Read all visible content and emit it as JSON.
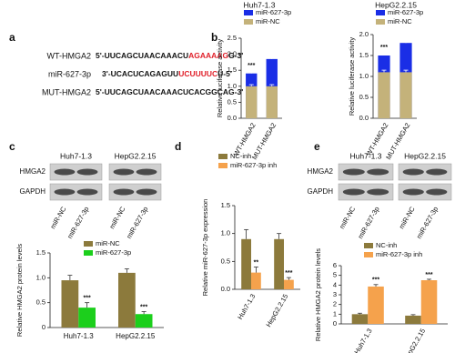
{
  "panels": [
    "a",
    "b",
    "c",
    "d",
    "e"
  ],
  "sequences": [
    {
      "name": "WT-HMGA2",
      "parts": [
        "5'-UUCAGCUAACAAACU",
        "AGAAAAG",
        "G-3'"
      ]
    },
    {
      "name": "miR-627-3p",
      "parts": [
        "3'-UCACUCAGAGUU",
        "UCUUUUC",
        "U-5'"
      ]
    },
    {
      "name": "MUT-HMGA2",
      "parts": [
        "5'-UUCAGCUAACAAACUCACGGCAG-3'"
      ]
    }
  ],
  "blots": [
    {
      "groups": [
        "Huh7-1.3",
        "HepG2.2.15"
      ],
      "rows": [
        "HMGA2",
        "GAPDH"
      ],
      "lanes": [
        "miR-NC",
        "miR-627-3p",
        "miR-NC",
        "miR-627-3p"
      ]
    },
    {
      "groups": [
        "Huh7-1.3",
        "HepG2.2.15"
      ],
      "rows": [
        "HMGA2",
        "GAPDH"
      ],
      "lanes": [
        "miR-NC",
        "miR-627-3p",
        "miR-NC",
        "miR-627-3p"
      ]
    }
  ],
  "chart_data": [
    {
      "type": "bar",
      "overlap": true,
      "title": "Huh7-1.3",
      "y_label": "Relative luciferase activity",
      "categories": [
        "WT-HMGA2",
        "MUT-HMGA2"
      ],
      "series": [
        {
          "name": "miR-627-3p",
          "color": "#1a2ee6",
          "values": [
            1.4,
            1.85
          ],
          "errors": [
            0.1,
            0.08
          ],
          "annotations": [
            "***",
            null
          ]
        },
        {
          "name": "miR-NC",
          "color": "#c4b27a",
          "values": [
            1.0,
            1.0
          ],
          "errors": [
            0.05,
            0.05
          ]
        }
      ],
      "ylim": [
        0,
        2.5
      ],
      "yticks": [
        {
          "value": 0,
          "label": "0.0"
        },
        0.5,
        {
          "value": 1,
          "label": "1.0"
        },
        1.5,
        {
          "value": 2,
          "label": "2.0"
        },
        2.5
      ]
    },
    {
      "type": "bar",
      "overlap": true,
      "title": "HepG2.2.15",
      "y_label": "Relative luciferase activity",
      "categories": [
        "WT-HMGA2",
        "MUT-HMGA2"
      ],
      "series": [
        {
          "name": "miR-627-3p",
          "color": "#1a2ee6",
          "values": [
            1.5,
            1.8
          ],
          "errors": [
            0.08,
            0.06
          ],
          "annotations": [
            "***",
            null
          ]
        },
        {
          "name": "miR-NC",
          "color": "#c4b27a",
          "values": [
            1.1,
            1.1
          ],
          "errors": [
            0.05,
            0.05
          ]
        }
      ],
      "ylim": [
        0,
        2
      ],
      "yticks": [
        {
          "value": 0,
          "label": "0.0"
        },
        0.5,
        {
          "value": 1,
          "label": "1.0"
        },
        1.5,
        {
          "value": 2,
          "label": "2.0"
        }
      ]
    },
    {
      "type": "bar",
      "y_label": "Relative HMGA2 protein levels",
      "categories": [
        "Huh7-1.3",
        "HepG2.2.15"
      ],
      "series": [
        {
          "name": "miR-NC",
          "color": "#8c7a3c",
          "values": [
            0.95,
            1.1
          ],
          "errors": [
            0.1,
            0.08
          ]
        },
        {
          "name": "miR-627-3p",
          "color": "#1ccf1c",
          "values": [
            0.4,
            0.27
          ],
          "errors": [
            0.1,
            0.05
          ],
          "annotations": [
            "***",
            "***"
          ]
        }
      ],
      "ylim": [
        0,
        1.5
      ],
      "yticks": [
        0,
        0.5,
        {
          "value": 1,
          "label": "1.0"
        },
        1.5
      ]
    },
    {
      "type": "bar",
      "y_label": "Relative miR-627-3p expression",
      "categories": [
        "Huh7-1.3",
        "HepG2.2.15"
      ],
      "series": [
        {
          "name": "NC-inh",
          "color": "#8c7a3c",
          "values": [
            0.9,
            0.9
          ],
          "errors": [
            0.17,
            0.1
          ]
        },
        {
          "name": "miR-627-3p inh",
          "color": "#f5a24c",
          "values": [
            0.3,
            0.17
          ],
          "errors": [
            0.1,
            0.04
          ],
          "annotations": [
            "**",
            "***"
          ]
        }
      ],
      "ylim": [
        0,
        1.5
      ],
      "yticks": [
        {
          "value": 0,
          "label": "0.0"
        },
        0.5,
        {
          "value": 1,
          "label": "1.0"
        },
        1.5
      ]
    },
    {
      "type": "bar",
      "y_label": "Relative HMGA2 protein levels",
      "categories": [
        "Huh7-1.3",
        "HepG2.2.15"
      ],
      "series": [
        {
          "name": "NC-inh",
          "color": "#8c7a3c",
          "values": [
            1.0,
            0.85
          ],
          "errors": [
            0.1,
            0.1
          ]
        },
        {
          "name": "miR-627-3p inh",
          "color": "#f5a24c",
          "values": [
            3.85,
            4.5
          ],
          "errors": [
            0.2,
            0.1
          ],
          "annotations": [
            "***",
            "***"
          ]
        }
      ],
      "ylim": [
        0,
        6
      ],
      "yticks": [
        0,
        1,
        2,
        3,
        4,
        5,
        6
      ]
    }
  ]
}
